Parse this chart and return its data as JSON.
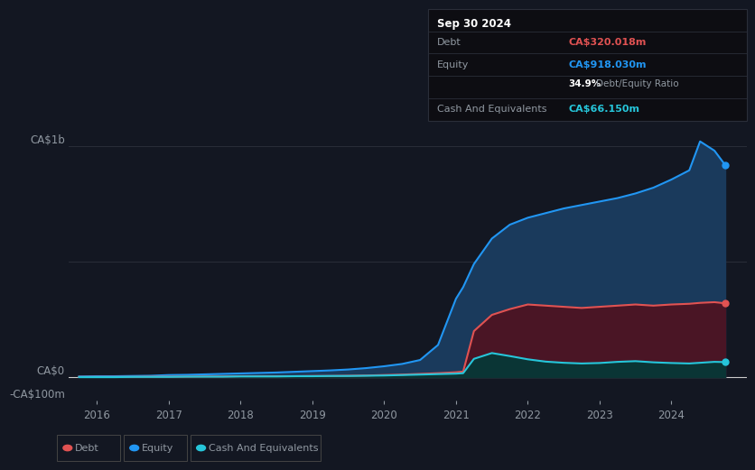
{
  "background_color": "#131722",
  "plot_bg_color": "#131722",
  "tooltip": {
    "date": "Sep 30 2024",
    "debt_label": "Debt",
    "debt_value": "CA$320.018m",
    "debt_color": "#e05252",
    "equity_label": "Equity",
    "equity_value": "CA$918.030m",
    "equity_color": "#2196f3",
    "ratio_value": "34.9%",
    "ratio_label": "Debt/Equity Ratio",
    "cash_label": "Cash And Equivalents",
    "cash_value": "CA$66.150m",
    "cash_color": "#26c6da"
  },
  "ylabel_top": "CA$1b",
  "ylabel_zero": "CA$0",
  "ylabel_neg": "-CA$100m",
  "xlabels": [
    "2016",
    "2017",
    "2018",
    "2019",
    "2020",
    "2021",
    "2022",
    "2023",
    "2024"
  ],
  "xticks": [
    2016,
    2017,
    2018,
    2019,
    2020,
    2021,
    2022,
    2023,
    2024
  ],
  "ylim": [
    -100,
    1100
  ],
  "grid_color": "#2a2e39",
  "text_color": "#9098a1",
  "equity_line_color": "#2196f3",
  "debt_line_color": "#e05252",
  "cash_line_color": "#26c6da",
  "equity_fill": "#1a3a5c",
  "debt_fill": "#4a1525",
  "cash_fill": "#0a3535",
  "years": [
    2015.75,
    2016.0,
    2016.25,
    2016.5,
    2016.75,
    2017.0,
    2017.25,
    2017.5,
    2017.75,
    2018.0,
    2018.25,
    2018.5,
    2018.75,
    2019.0,
    2019.25,
    2019.5,
    2019.75,
    2020.0,
    2020.25,
    2020.5,
    2020.75,
    2021.0,
    2021.1,
    2021.25,
    2021.5,
    2021.75,
    2022.0,
    2022.25,
    2022.5,
    2022.75,
    2023.0,
    2023.25,
    2023.5,
    2023.75,
    2024.0,
    2024.25,
    2024.4,
    2024.6,
    2024.75
  ],
  "equity": [
    4,
    5,
    5,
    6,
    7,
    10,
    11,
    13,
    15,
    17,
    19,
    21,
    24,
    27,
    30,
    34,
    40,
    48,
    58,
    75,
    140,
    340,
    390,
    490,
    600,
    660,
    690,
    710,
    730,
    745,
    760,
    775,
    795,
    820,
    855,
    895,
    1020,
    980,
    918
  ],
  "debt": [
    2,
    2,
    2,
    2,
    3,
    3,
    3,
    4,
    4,
    5,
    5,
    5,
    5,
    6,
    6,
    7,
    8,
    10,
    12,
    15,
    18,
    22,
    25,
    200,
    270,
    295,
    315,
    310,
    305,
    300,
    305,
    310,
    315,
    310,
    315,
    318,
    322,
    325,
    320
  ],
  "cash": [
    1,
    1,
    1,
    2,
    2,
    2,
    3,
    3,
    3,
    4,
    4,
    4,
    5,
    5,
    6,
    6,
    7,
    8,
    10,
    12,
    14,
    16,
    18,
    80,
    105,
    92,
    78,
    68,
    63,
    60,
    62,
    67,
    70,
    65,
    62,
    60,
    63,
    67,
    66
  ],
  "legend": [
    {
      "label": "Debt",
      "color": "#e05252"
    },
    {
      "label": "Equity",
      "color": "#2196f3"
    },
    {
      "label": "Cash And Equivalents",
      "color": "#26c6da"
    }
  ]
}
